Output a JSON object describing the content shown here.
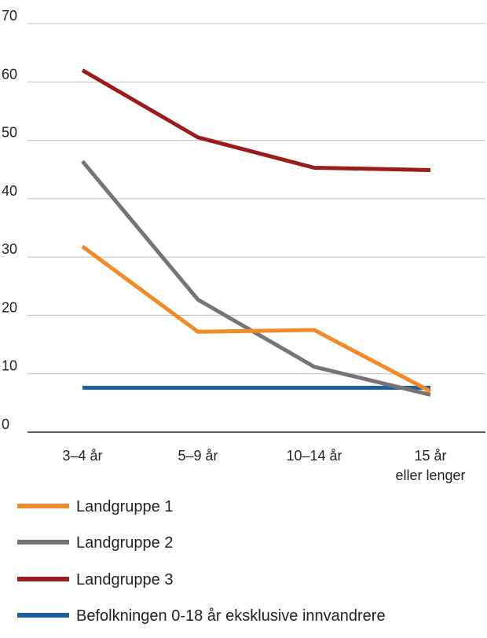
{
  "chart_data": {
    "type": "line",
    "title": "",
    "xlabel": "",
    "ylabel": "",
    "categories": [
      [
        "3–4 år"
      ],
      [
        "5–9 år"
      ],
      [
        "10–14 år"
      ],
      [
        "15 år",
        "eller lenger"
      ]
    ],
    "ylim": [
      0,
      70
    ],
    "yticks": [
      0,
      10,
      20,
      30,
      40,
      50,
      60,
      70
    ],
    "grid": true,
    "legend_position": "bottom",
    "series": [
      {
        "name": "Landgruppe 1",
        "color": "#f28a2a",
        "values": [
          31.8,
          17.2,
          17.5,
          7.0
        ]
      },
      {
        "name": "Landgruppe 2",
        "color": "#757477",
        "values": [
          46.4,
          22.7,
          11.2,
          6.4
        ]
      },
      {
        "name": "Landgruppe 3",
        "color": "#9b1c1c",
        "values": [
          62.0,
          50.5,
          45.3,
          44.9
        ]
      },
      {
        "name": "Befolkningen 0-18 år eksklusive innvandrere",
        "color": "#1f5f99",
        "values": [
          7.6,
          7.6,
          7.6,
          7.6
        ]
      }
    ]
  }
}
